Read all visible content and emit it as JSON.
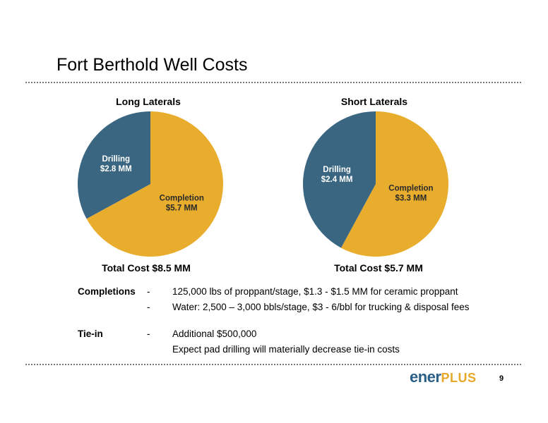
{
  "slide": {
    "title": "Fort Berthold Well Costs",
    "page_number": "9",
    "logo": {
      "main": "ener",
      "plus": "PLUS"
    }
  },
  "colors": {
    "drilling": "#3a6681",
    "completion": "#e9ad2d"
  },
  "chart_data": [
    {
      "type": "pie",
      "title": "Long Laterals",
      "total_label": "Total Cost $8.5 MM",
      "slices": [
        {
          "name": "Completion",
          "value": 5.7,
          "label_line1": "Completion",
          "label_line2": "$5.7 MM"
        },
        {
          "name": "Drilling",
          "value": 2.8,
          "label_line1": "Drilling",
          "label_line2": "$2.8 MM"
        }
      ]
    },
    {
      "type": "pie",
      "title": "Short Laterals",
      "total_label": "Total Cost $5.7 MM",
      "slices": [
        {
          "name": "Completion",
          "value": 3.3,
          "label_line1": "Completion",
          "label_line2": "$3.3 MM"
        },
        {
          "name": "Drilling",
          "value": 2.4,
          "label_line1": "Drilling",
          "label_line2": "$2.4 MM"
        }
      ]
    }
  ],
  "notes": [
    {
      "label": "Completions",
      "dash": "-",
      "text": "125,000 lbs of proppant/stage, $1.3 - $1.5 MM for ceramic proppant"
    },
    {
      "label": "",
      "dash": "-",
      "text": "Water: 2,500 – 3,000 bbls/stage, $3 - 6/bbl for trucking & disposal fees"
    },
    {
      "label": "Tie-in",
      "dash": "-",
      "text": "Additional $500,000"
    },
    {
      "label": "",
      "dash": "",
      "text": "Expect pad drilling will materially decrease tie-in costs"
    }
  ]
}
